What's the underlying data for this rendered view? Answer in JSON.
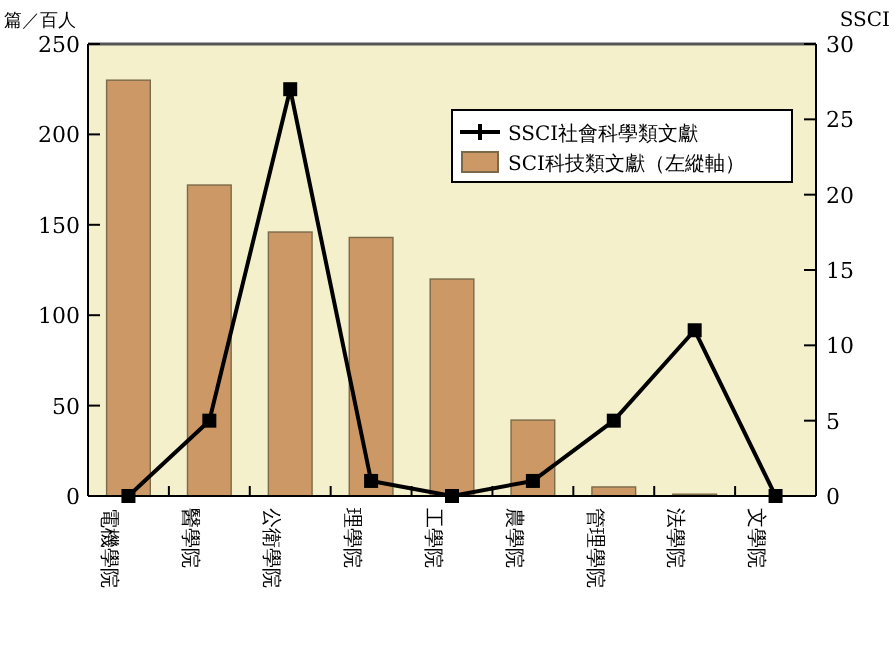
{
  "chart_data": {
    "type": "bar",
    "ylabel": "篇／百人",
    "y2label": "SSCI",
    "categories": [
      "電機學院",
      "醫學院",
      "公衛學院",
      "理學院",
      "工學院",
      "農學院",
      "管理學院",
      "法學院",
      "文學院"
    ],
    "series": [
      {
        "name": "SCI科技類文獻（左縱軸）",
        "color": "#cc9966",
        "values": [
          230,
          172,
          146,
          143,
          120,
          42,
          5,
          1,
          0
        ]
      },
      {
        "name": "SSCI社會科學類文獻",
        "type": "line",
        "axis": "y2",
        "color": "#000000",
        "marker": "square",
        "values": [
          0,
          5,
          27,
          1,
          0,
          1,
          5,
          11,
          0
        ]
      }
    ],
    "ylim": [
      0,
      250
    ],
    "yticks": [
      0,
      50,
      100,
      150,
      200,
      250
    ],
    "y2lim": [
      0,
      30
    ],
    "y2ticks": [
      0,
      5,
      10,
      15,
      20,
      25,
      30
    ],
    "legend": "top right",
    "grid": false
  }
}
